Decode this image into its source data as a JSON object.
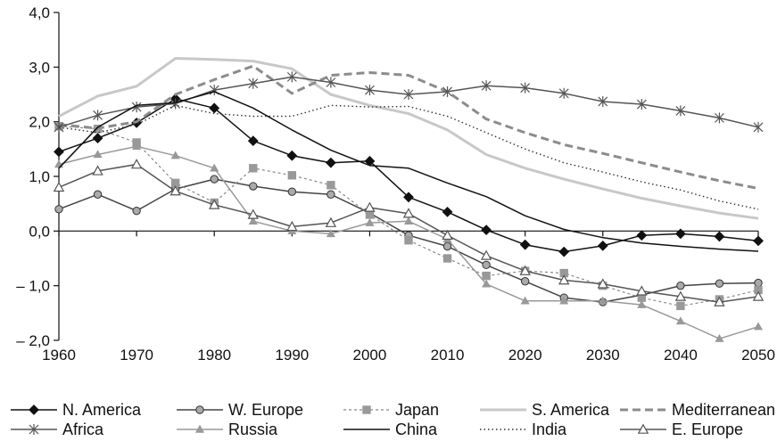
{
  "chart_data": {
    "type": "line",
    "title": "",
    "xlabel": "",
    "ylabel": "",
    "x": [
      1960,
      1965,
      1970,
      1975,
      1980,
      1985,
      1990,
      1995,
      2000,
      2005,
      2010,
      2015,
      2020,
      2025,
      2030,
      2035,
      2040,
      2045,
      2050
    ],
    "xlim": [
      1960,
      2050
    ],
    "ylim": [
      -2.0,
      4.0
    ],
    "x_ticks": [
      1960,
      1970,
      1980,
      1990,
      2000,
      2010,
      2020,
      2030,
      2040,
      2050
    ],
    "y_ticks": [
      -2.0,
      -1.0,
      0.0,
      1.0,
      2.0,
      3.0,
      4.0
    ],
    "x_tick_labels": [
      "1960",
      "1970",
      "1980",
      "1990",
      "2000",
      "2010",
      "2020",
      "2030",
      "2040",
      "2050"
    ],
    "y_tick_labels": [
      "– 2,0",
      "– 1,0",
      "0,0",
      "1,0",
      "2,0",
      "3,0",
      "4,0"
    ],
    "grid": false,
    "zero_line": true,
    "legend_position": "bottom",
    "series": [
      {
        "name": "N. America",
        "color": "#111111",
        "dash": "solid",
        "marker": "diamond",
        "values": [
          1.45,
          1.7,
          1.98,
          2.42,
          2.25,
          1.65,
          1.38,
          1.25,
          1.28,
          0.62,
          0.35,
          0.02,
          -0.25,
          -0.38,
          -0.27,
          -0.08,
          -0.05,
          -0.1,
          -0.18
        ]
      },
      {
        "name": "W. Europe",
        "color": "#444444",
        "dash": "solid",
        "marker": "circle",
        "values": [
          0.4,
          0.67,
          0.37,
          0.77,
          0.95,
          0.82,
          0.72,
          0.67,
          0.33,
          -0.08,
          -0.28,
          -0.62,
          -0.92,
          -1.22,
          -1.3,
          -1.17,
          -1.0,
          -0.96,
          -0.95
        ]
      },
      {
        "name": "Japan",
        "color": "#888888",
        "dash": "dotted",
        "marker": "square",
        "values": [
          1.92,
          1.87,
          1.62,
          0.88,
          0.52,
          1.15,
          1.02,
          0.84,
          0.3,
          -0.17,
          -0.5,
          -0.82,
          -0.73,
          -0.77,
          -1.0,
          -1.22,
          -1.37,
          -1.25,
          -1.08
        ]
      },
      {
        "name": "S. America",
        "color": "#c8c8c8",
        "dash": "solid",
        "marker": "none",
        "values": [
          2.1,
          2.47,
          2.65,
          3.16,
          3.14,
          3.11,
          2.97,
          2.5,
          2.3,
          2.15,
          1.85,
          1.4,
          1.15,
          0.95,
          0.77,
          0.6,
          0.46,
          0.33,
          0.23
        ]
      },
      {
        "name": "Mediterranean",
        "color": "#8c8c8c",
        "dash": "dashed",
        "marker": "none",
        "values": [
          1.95,
          1.88,
          2.0,
          2.5,
          2.77,
          3.02,
          2.52,
          2.85,
          2.9,
          2.85,
          2.55,
          2.05,
          1.8,
          1.58,
          1.42,
          1.25,
          1.08,
          0.92,
          0.78
        ]
      },
      {
        "name": "Africa",
        "color": "#555555",
        "dash": "solid",
        "marker": "asterisk",
        "values": [
          1.9,
          2.12,
          2.27,
          2.33,
          2.58,
          2.7,
          2.82,
          2.72,
          2.58,
          2.5,
          2.55,
          2.66,
          2.62,
          2.52,
          2.37,
          2.32,
          2.2,
          2.07,
          1.9
        ]
      },
      {
        "name": "Russia",
        "color": "#999999",
        "dash": "solid",
        "marker": "triangle-filled",
        "values": [
          1.22,
          1.4,
          1.55,
          1.38,
          1.15,
          0.18,
          0.0,
          -0.05,
          0.15,
          0.18,
          -0.15,
          -0.97,
          -1.28,
          -1.28,
          -1.28,
          -1.35,
          -1.65,
          -1.97,
          -1.75
        ]
      },
      {
        "name": "China",
        "color": "#111111",
        "dash": "solid",
        "marker": "none",
        "values": [
          1.15,
          1.9,
          2.3,
          2.35,
          2.55,
          2.25,
          1.85,
          1.48,
          1.2,
          1.15,
          0.88,
          0.63,
          0.28,
          0.03,
          -0.12,
          -0.22,
          -0.28,
          -0.33,
          -0.37
        ]
      },
      {
        "name": "India",
        "color": "#333333",
        "dash": "fine-dotted",
        "marker": "none",
        "values": [
          1.9,
          1.8,
          1.95,
          2.3,
          2.15,
          2.1,
          2.1,
          2.3,
          2.27,
          2.28,
          2.1,
          1.8,
          1.5,
          1.25,
          1.08,
          0.9,
          0.75,
          0.55,
          0.4
        ]
      },
      {
        "name": "E. Europe",
        "color": "#555555",
        "dash": "solid",
        "marker": "triangle-open",
        "values": [
          0.8,
          1.1,
          1.22,
          0.73,
          0.48,
          0.3,
          0.08,
          0.15,
          0.43,
          0.32,
          -0.08,
          -0.45,
          -0.73,
          -0.9,
          -0.97,
          -1.1,
          -1.2,
          -1.3,
          -1.2
        ]
      }
    ]
  }
}
